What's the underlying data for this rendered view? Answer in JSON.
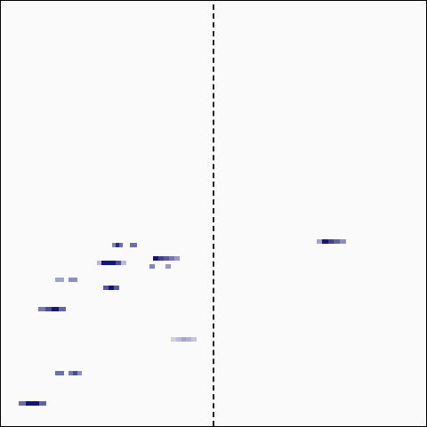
{
  "palette": {
    "background": "#fafafa",
    "border": "#000000",
    "divider": "#222222",
    "intensity_low": "#e6e6f2",
    "intensity_high": "#0b0b6b"
  },
  "marks": [
    {
      "id": "m1",
      "intensities": [
        0.45,
        0.85,
        0.55,
        0.0,
        0.0,
        0.55,
        0.55
      ]
    },
    {
      "id": "m2",
      "intensities": [
        0.2,
        0.95,
        0.95,
        0.95,
        0.7,
        0.2
      ]
    },
    {
      "id": "m3",
      "intensities": [
        0.95,
        0.75,
        0.65,
        0.5,
        0.35
      ]
    },
    {
      "id": "m4",
      "intensities": [
        0.45,
        0.0,
        0.0,
        0.35
      ]
    },
    {
      "id": "m5",
      "intensities": [
        0.3,
        0.3,
        0.0,
        0.4,
        0.4
      ]
    },
    {
      "id": "m6",
      "intensities": [
        0.65,
        0.95,
        0.65
      ]
    },
    {
      "id": "m7",
      "intensities": [
        0.5,
        0.7,
        0.95,
        0.6
      ]
    },
    {
      "id": "m8",
      "intensities": [
        0.1,
        0.2,
        0.3,
        0.25,
        0.15
      ]
    },
    {
      "id": "m9",
      "intensities": [
        0.55,
        0.55,
        0.0,
        0.5,
        0.7,
        0.4
      ]
    },
    {
      "id": "m10",
      "intensities": [
        0.55,
        0.95,
        0.95,
        0.6
      ]
    },
    {
      "id": "m11",
      "intensities": [
        0.3,
        0.95,
        0.75,
        0.6,
        0.4
      ]
    }
  ]
}
